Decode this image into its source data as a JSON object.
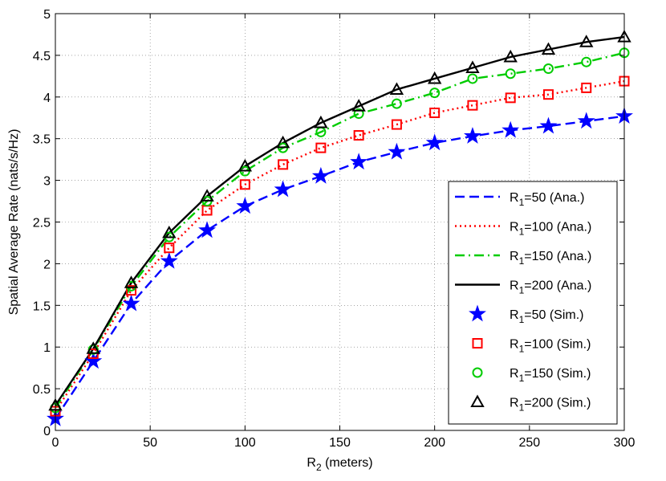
{
  "chart_data": {
    "type": "line",
    "xlabel": {
      "main": "R",
      "sub": "2",
      "rest": " (meters)"
    },
    "ylabel": "Spatial Average Rate (nats/s/Hz)",
    "xlim": [
      0,
      300
    ],
    "ylim": [
      0,
      5
    ],
    "xticks": [
      0,
      50,
      100,
      150,
      200,
      250,
      300
    ],
    "yticks": [
      0,
      0.5,
      1,
      1.5,
      2,
      2.5,
      3,
      3.5,
      4,
      4.5,
      5
    ],
    "xtick_labels": [
      "0",
      "50",
      "100",
      "150",
      "200",
      "250",
      "300"
    ],
    "ytick_labels": [
      "0",
      "0.5",
      "1",
      "1.5",
      "2",
      "2.5",
      "3",
      "3.5",
      "4",
      "4.5",
      "5"
    ],
    "grid": true,
    "legend_position": "lower-right",
    "x": [
      0,
      20,
      40,
      60,
      80,
      100,
      120,
      140,
      160,
      180,
      200,
      220,
      240,
      260,
      280,
      300
    ],
    "series": [
      {
        "name": "R1=50 (Ana.)",
        "label": {
          "main": "R",
          "sub": "1",
          "rest": "=50 (Ana.)"
        },
        "kind": "line",
        "dash": "dashed",
        "color": "#0000ff",
        "values": [
          0.14,
          0.83,
          1.52,
          2.03,
          2.4,
          2.69,
          2.89,
          3.05,
          3.22,
          3.34,
          3.45,
          3.53,
          3.6,
          3.65,
          3.71,
          3.77
        ]
      },
      {
        "name": "R1=100 (Ana.)",
        "label": {
          "main": "R",
          "sub": "1",
          "rest": "=100 (Ana.)"
        },
        "kind": "line",
        "dash": "dotted",
        "color": "#ff0000",
        "values": [
          0.23,
          0.92,
          1.68,
          2.19,
          2.64,
          2.95,
          3.19,
          3.39,
          3.54,
          3.67,
          3.81,
          3.9,
          3.99,
          4.03,
          4.11,
          4.19
        ]
      },
      {
        "name": "R1=150 (Ana.)",
        "label": {
          "main": "R",
          "sub": "1",
          "rest": "=150 (Ana.)"
        },
        "kind": "line",
        "dash": "dashdot",
        "color": "#00cc00",
        "values": [
          0.27,
          0.97,
          1.73,
          2.32,
          2.75,
          3.11,
          3.39,
          3.58,
          3.8,
          3.92,
          4.05,
          4.22,
          4.28,
          4.34,
          4.42,
          4.53
        ]
      },
      {
        "name": "R1=200 (Ana.)",
        "label": {
          "main": "R",
          "sub": "1",
          "rest": "=200 (Ana.)"
        },
        "kind": "line",
        "dash": "solid",
        "color": "#000000",
        "values": [
          0.3,
          0.98,
          1.77,
          2.37,
          2.81,
          3.17,
          3.45,
          3.69,
          3.89,
          4.09,
          4.22,
          4.35,
          4.48,
          4.57,
          4.66,
          4.72
        ]
      },
      {
        "name": "R1=50 (Sim.)",
        "label": {
          "main": "R",
          "sub": "1",
          "rest": "=50 (Sim.)"
        },
        "kind": "marker",
        "marker": "star",
        "color": "#0000ff",
        "values": [
          0.14,
          0.83,
          1.52,
          2.03,
          2.4,
          2.69,
          2.89,
          3.05,
          3.22,
          3.34,
          3.45,
          3.53,
          3.6,
          3.65,
          3.71,
          3.77
        ]
      },
      {
        "name": "R1=100 (Sim.)",
        "label": {
          "main": "R",
          "sub": "1",
          "rest": "=100 (Sim.)"
        },
        "kind": "marker",
        "marker": "square",
        "color": "#ff0000",
        "values": [
          0.23,
          0.92,
          1.68,
          2.19,
          2.64,
          2.95,
          3.19,
          3.39,
          3.54,
          3.67,
          3.81,
          3.9,
          3.99,
          4.03,
          4.11,
          4.19
        ]
      },
      {
        "name": "R1=150 (Sim.)",
        "label": {
          "main": "R",
          "sub": "1",
          "rest": "=150 (Sim.)"
        },
        "kind": "marker",
        "marker": "circle",
        "color": "#00cc00",
        "values": [
          0.27,
          0.97,
          1.73,
          2.32,
          2.75,
          3.11,
          3.39,
          3.58,
          3.8,
          3.92,
          4.05,
          4.22,
          4.28,
          4.34,
          4.42,
          4.53
        ]
      },
      {
        "name": "R1=200 (Sim.)",
        "label": {
          "main": "R",
          "sub": "1",
          "rest": "=200 (Sim.)"
        },
        "kind": "marker",
        "marker": "triangle",
        "color": "#000000",
        "values": [
          0.3,
          0.98,
          1.77,
          2.37,
          2.81,
          3.17,
          3.45,
          3.69,
          3.89,
          4.09,
          4.22,
          4.35,
          4.48,
          4.57,
          4.66,
          4.72
        ]
      }
    ]
  }
}
